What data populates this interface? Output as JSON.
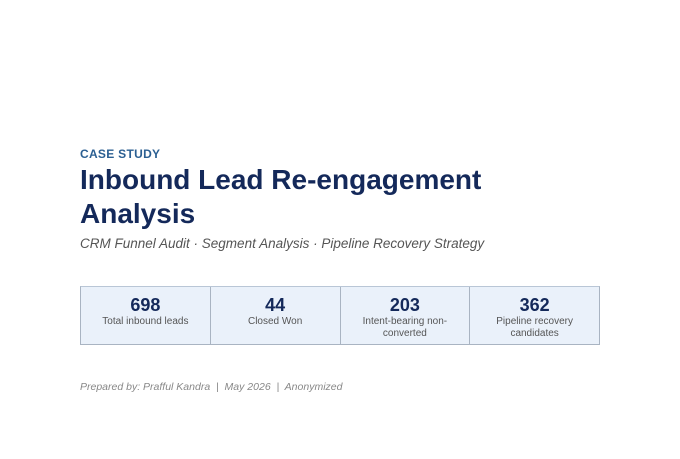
{
  "header": {
    "eyebrow": "CASE STUDY",
    "title": "Inbound Lead Re-engagement Analysis",
    "subtitle": "CRM Funnel Audit · Segment Analysis · Pipeline Recovery Strategy"
  },
  "stats": [
    {
      "value": 698,
      "label": "Total inbound leads"
    },
    {
      "value": 44,
      "label": "Closed Won"
    },
    {
      "value": 203,
      "label": "Intent-bearing non-converted"
    },
    {
      "value": 362,
      "label": "Pipeline recovery candidates"
    }
  ],
  "footer": "Prepared by: Prafful Kandra  |  May 2026  |  Anonymized"
}
